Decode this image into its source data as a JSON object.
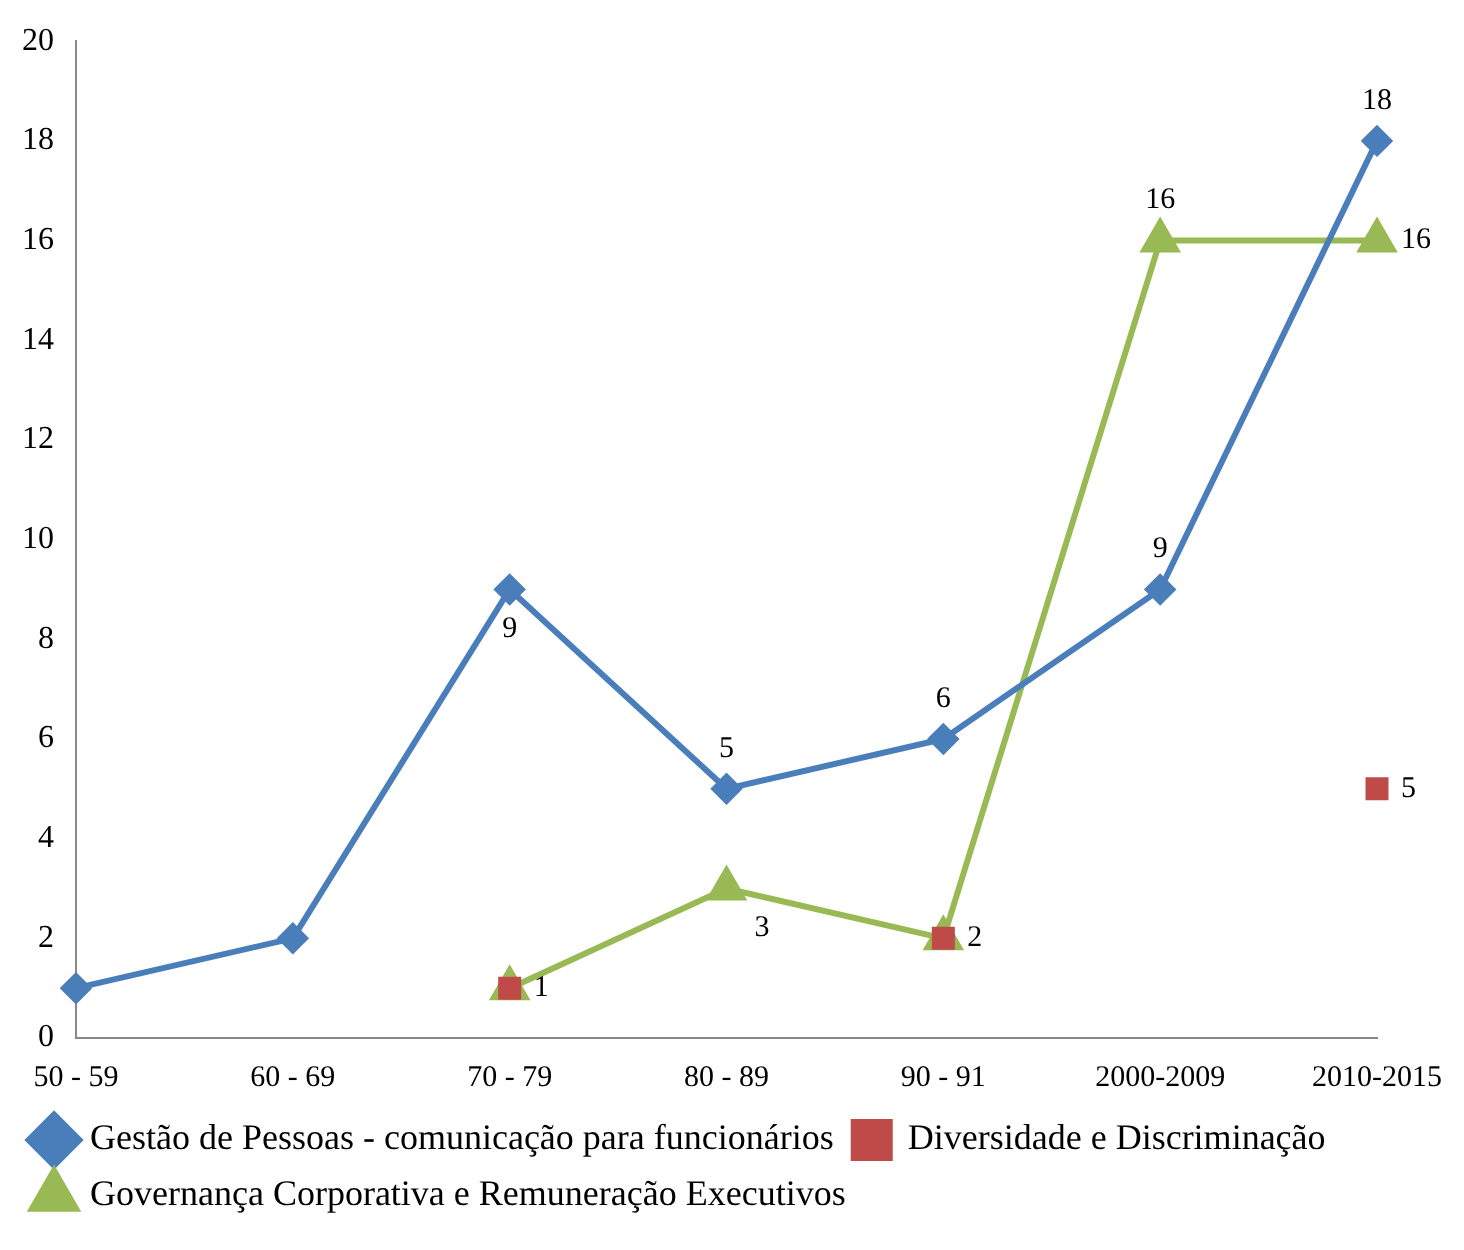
{
  "chart_data": {
    "type": "line",
    "categories": [
      "50 - 59",
      "60 - 69",
      "70 - 79",
      "80 - 89",
      "90 - 91",
      "2000-2009",
      "2010-2015"
    ],
    "series": [
      {
        "name": "Gestão de Pessoas - comunicação para funcionários",
        "color": "#4a7ebb",
        "marker": "diamond",
        "values": [
          1,
          2,
          9,
          5,
          6,
          9,
          18
        ],
        "value_labels": [
          null,
          null,
          "9",
          "5",
          "6",
          "9",
          "18"
        ]
      },
      {
        "name": "Diversidade e Discriminação",
        "type": "scatter",
        "color": "#be4b48",
        "marker": "square",
        "values": [
          null,
          null,
          1,
          null,
          2,
          null,
          5
        ],
        "value_labels": [
          null,
          null,
          "1",
          null,
          "2",
          null,
          "5"
        ]
      },
      {
        "name": "Governança Corporativa e Remuneração Executivos",
        "color": "#98b954",
        "marker": "triangle",
        "values": [
          null,
          null,
          1,
          3,
          2,
          16,
          16
        ],
        "value_labels": [
          null,
          null,
          null,
          "3",
          null,
          "16",
          "16"
        ]
      }
    ],
    "ylim": [
      0,
      20
    ],
    "yticks": [
      0,
      2,
      4,
      6,
      8,
      10,
      12,
      14,
      16,
      18,
      20
    ],
    "grid": false,
    "legend": "bottom"
  }
}
